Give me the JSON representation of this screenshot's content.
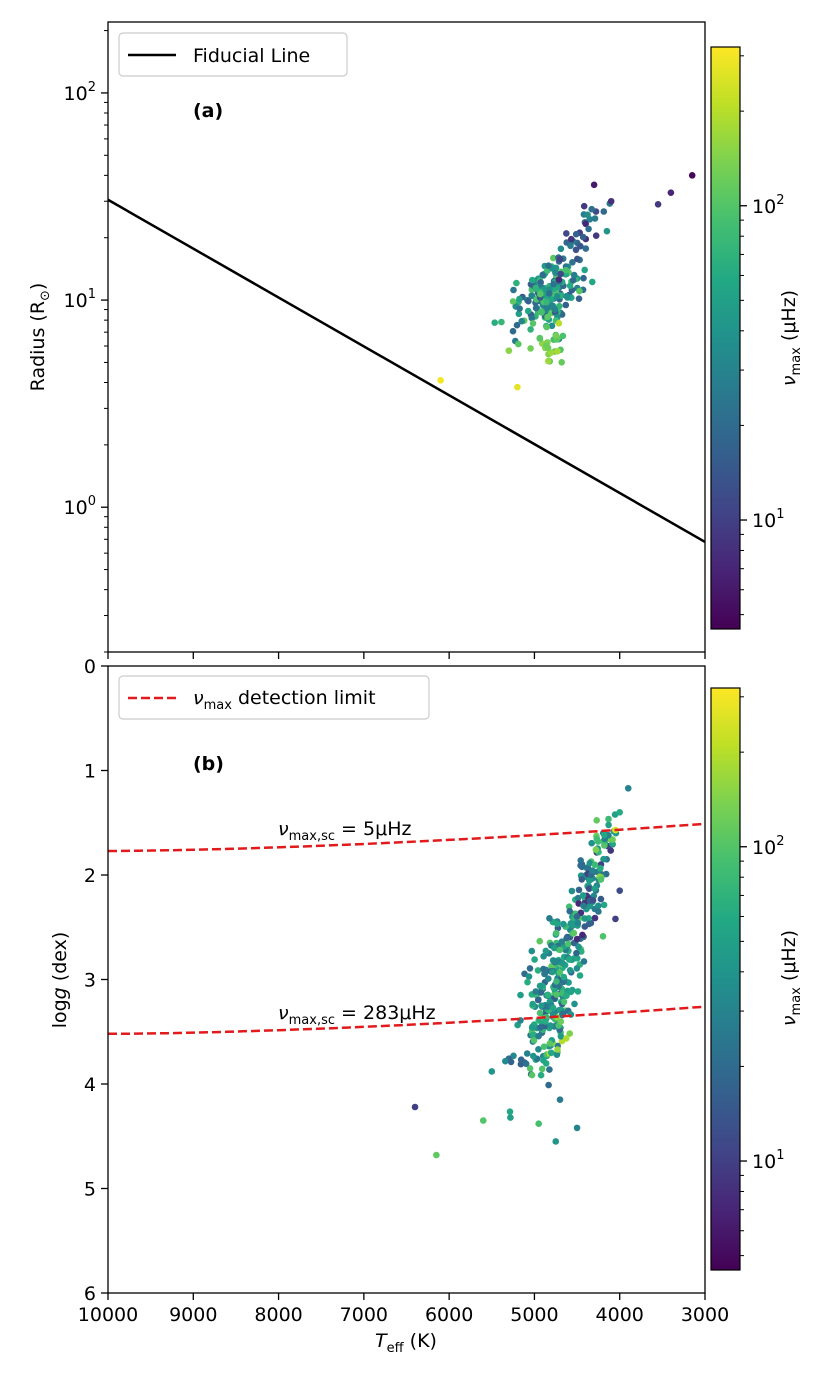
{
  "chart_data": [
    {
      "type": "scatter",
      "panel": "(a)",
      "xlabel": "T",
      "xlabel_sub": "eff",
      "xlabel_unit": " (K)",
      "ylabel": "Radius (R",
      "ylabel_sub": "⊙",
      "ylabel_end": ")",
      "xlim": [
        10000,
        3000
      ],
      "ylim": [
        0.2,
        220
      ],
      "yscale": "log",
      "yticks": [
        {
          "value": 1,
          "label_base": "10",
          "label_exp": "0"
        },
        {
          "value": 10,
          "label_base": "10",
          "label_exp": "1"
        },
        {
          "value": 100,
          "label_base": "10",
          "label_exp": "2"
        }
      ],
      "legend": {
        "placement": "top-left",
        "entries": [
          {
            "label": "Fiducial Line",
            "style": "solid",
            "color": "#000000"
          }
        ]
      },
      "fiducial_line": {
        "x": [
          10000,
          3000
        ],
        "y": [
          30.5,
          0.68
        ]
      },
      "colorbar": {
        "label": "ν",
        "label_sub": "max",
        "label_unit": " (μHz)",
        "range": [
          4.5,
          320
        ],
        "scale": "log",
        "ticks": [
          {
            "value": 10,
            "label_base": "10",
            "label_exp": "1"
          },
          {
            "value": 100,
            "label_base": "10",
            "label_exp": "2"
          }
        ]
      },
      "seed": 7,
      "clusters": [
        {
          "n": 170,
          "tx": 4850,
          "sx": 200,
          "ly": 1.02,
          "sy": 0.09,
          "corr": -0.55,
          "c_lo": 15,
          "c_hi": 110
        },
        {
          "n": 25,
          "tx": 4850,
          "sx": 120,
          "ly": 0.8,
          "sy": 0.06,
          "corr": 0,
          "c_lo": 90,
          "c_hi": 200
        },
        {
          "n": 30,
          "tx": 4450,
          "sx": 140,
          "ly": 1.3,
          "sy": 0.1,
          "corr": -0.7,
          "c_lo": 7,
          "c_hi": 40
        }
      ],
      "points": [
        {
          "teff": 6100,
          "radius": 4.1,
          "numax": 300
        },
        {
          "teff": 5200,
          "radius": 3.8,
          "numax": 270
        },
        {
          "teff": 3550,
          "radius": 29,
          "numax": 9
        },
        {
          "teff": 3400,
          "radius": 33,
          "numax": 7
        },
        {
          "teff": 3150,
          "radius": 40,
          "numax": 5
        },
        {
          "teff": 4300,
          "radius": 36,
          "numax": 6
        },
        {
          "teff": 4100,
          "radius": 30,
          "numax": 8
        },
        {
          "teff": 4150,
          "radius": 21.5,
          "numax": 40
        },
        {
          "teff": 5300,
          "radius": 5.7,
          "numax": 150
        }
      ]
    },
    {
      "type": "scatter",
      "panel": "(b)",
      "xlabel": "T",
      "xlabel_sub": "eff",
      "xlabel_unit": " (K)",
      "ylabel": "log",
      "ylabel_italic": "g",
      "ylabel_unit": " (dex)",
      "xlim": [
        10000,
        3000
      ],
      "ylim": [
        6,
        0
      ],
      "xticks": [
        10000,
        9000,
        8000,
        7000,
        6000,
        5000,
        4000,
        3000
      ],
      "yticks": [
        0,
        1,
        2,
        3,
        4,
        5,
        6
      ],
      "legend": {
        "placement": "top-left",
        "entries": [
          {
            "label": "detection limit",
            "label_prefix": "ν",
            "label_sub": "max",
            "style": "dashed",
            "color": "#e31a1c"
          }
        ]
      },
      "detection_limits": [
        {
          "label": "ν",
          "label_sub": "max,sc",
          "label_value": " = 5μHz",
          "y_start": 1.77,
          "y_end": 1.51
        },
        {
          "label": "ν",
          "label_sub": "max,sc",
          "label_value": " = 283μHz",
          "y_start": 3.52,
          "y_end": 3.26
        }
      ],
      "colorbar": {
        "label": "ν",
        "label_sub": "max",
        "label_unit": " (μHz)",
        "range": [
          4.5,
          320
        ],
        "scale": "log",
        "ticks": [
          {
            "value": 10,
            "label_base": "10",
            "label_exp": "1"
          },
          {
            "value": 100,
            "label_base": "10",
            "label_exp": "2"
          }
        ]
      },
      "seed": 11,
      "clusters": [
        {
          "n": 230,
          "tx": 4750,
          "sx": 230,
          "ly": 2.95,
          "sy": 0.45,
          "corr": 0.78,
          "c_lo": 15,
          "c_hi": 110
        },
        {
          "n": 60,
          "tx": 4800,
          "sx": 150,
          "ly": 3.45,
          "sy": 0.25,
          "corr": 0.5,
          "c_lo": 20,
          "c_hi": 200
        },
        {
          "n": 60,
          "tx": 4350,
          "sx": 130,
          "ly": 2.2,
          "sy": 0.28,
          "corr": 0.7,
          "c_lo": 7,
          "c_hi": 50
        },
        {
          "n": 30,
          "tx": 4200,
          "sx": 90,
          "ly": 1.75,
          "sy": 0.15,
          "corr": 0.6,
          "c_lo": 20,
          "c_hi": 150
        }
      ],
      "points": [
        {
          "teff": 3900,
          "logg": 1.17,
          "numax": 30
        },
        {
          "teff": 4050,
          "logg": 1.57,
          "numax": 250
        },
        {
          "teff": 4000,
          "logg": 1.4,
          "numax": 60
        },
        {
          "teff": 6400,
          "logg": 4.22,
          "numax": 10
        },
        {
          "teff": 6150,
          "logg": 4.68,
          "numax": 110
        },
        {
          "teff": 5600,
          "logg": 4.35,
          "numax": 100
        },
        {
          "teff": 5500,
          "logg": 3.88,
          "numax": 40
        },
        {
          "teff": 4950,
          "logg": 4.38,
          "numax": 90
        },
        {
          "teff": 4750,
          "logg": 4.55,
          "numax": 40
        },
        {
          "teff": 4500,
          "logg": 4.42,
          "numax": 30
        },
        {
          "teff": 4700,
          "logg": 4.15,
          "numax": 25
        },
        {
          "teff": 4050,
          "logg": 2.42,
          "numax": 10
        },
        {
          "teff": 4000,
          "logg": 2.15,
          "numax": 12
        }
      ]
    }
  ]
}
